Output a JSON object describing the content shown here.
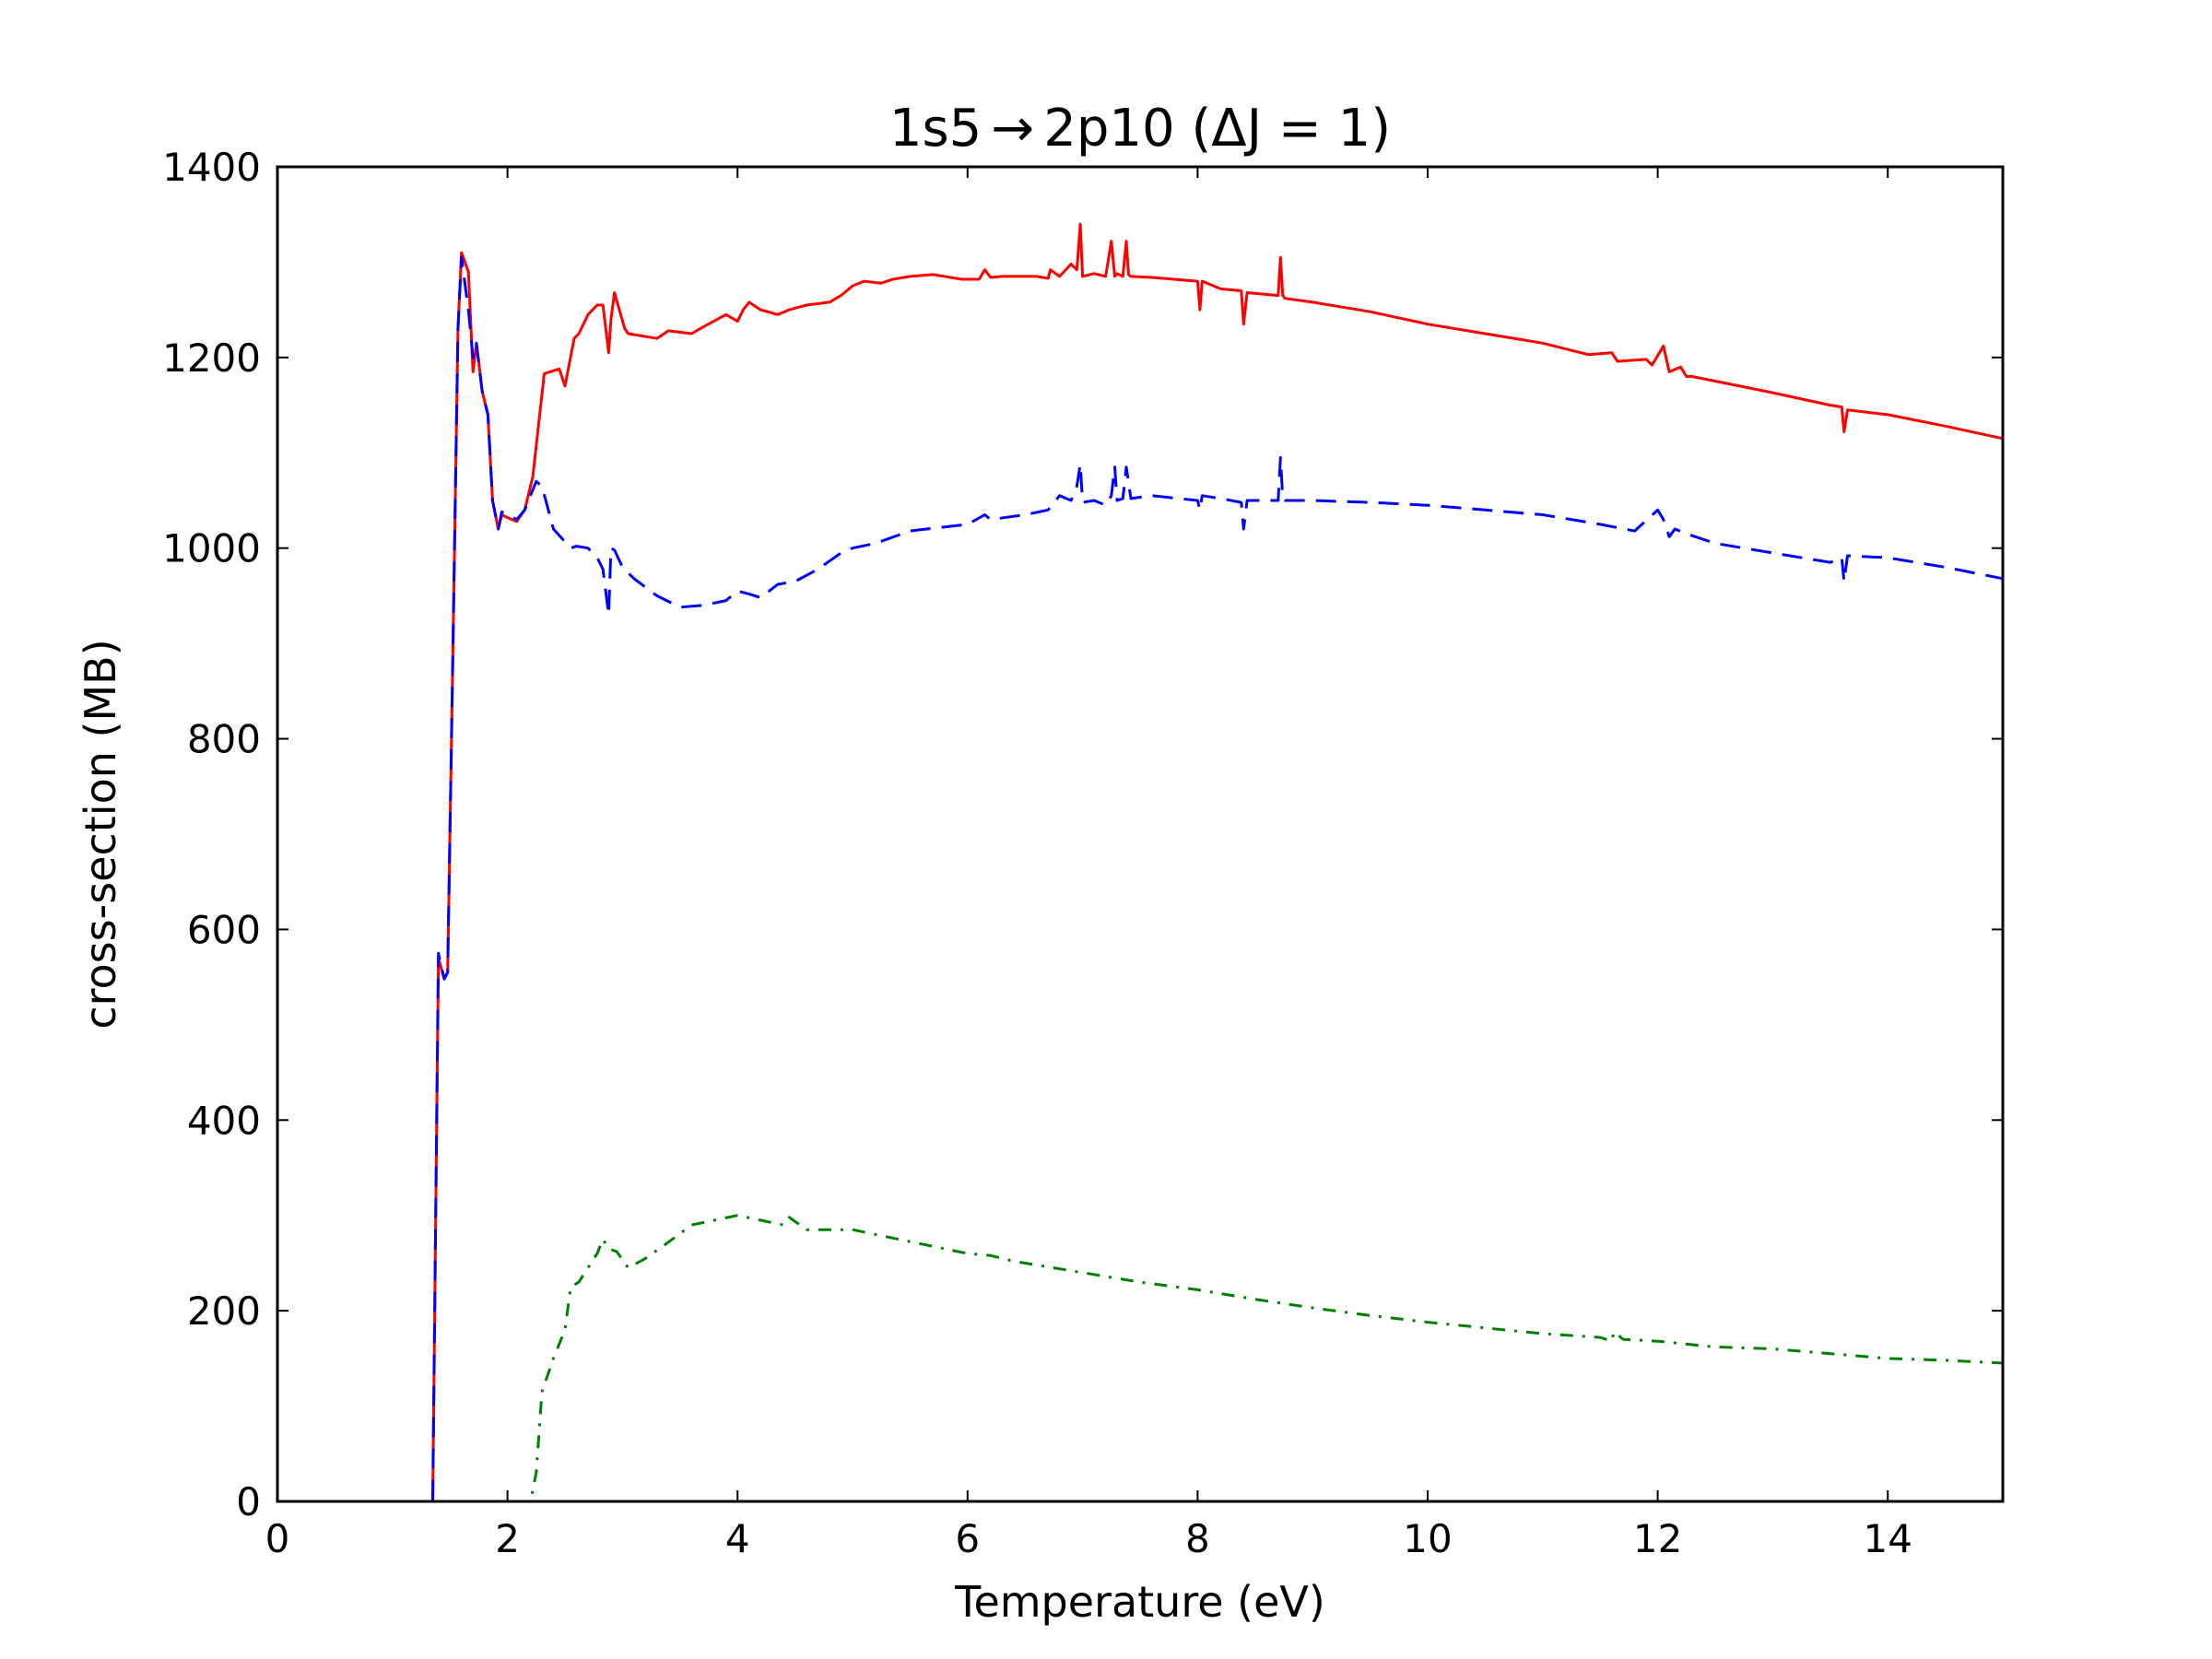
{
  "chart_data": {
    "type": "line",
    "title": "1s5 2p10  (ΔJ = 1)",
    "title_parts": {
      "left": "1s5",
      "arrow": "→",
      "right": "2p10  (ΔJ = 1)"
    },
    "xlabel": "Temperature (eV)",
    "ylabel": "cross-section (MB)",
    "xlim": [
      0,
      15
    ],
    "ylim": [
      0,
      1400
    ],
    "xticks": [
      0,
      2,
      4,
      6,
      8,
      10,
      12,
      14
    ],
    "yticks": [
      0,
      200,
      400,
      600,
      800,
      1000,
      1200,
      1400
    ],
    "grid": false,
    "legend": "none",
    "series": [
      {
        "color": "#ff0000",
        "dash": "solid",
        "x": [
          0,
          1.35,
          1.35,
          1.4,
          1.45,
          1.48,
          1.52,
          1.57,
          1.6,
          1.66,
          1.7,
          1.73,
          1.78,
          1.83,
          1.87,
          1.92,
          1.95,
          2.0,
          2.08,
          2.15,
          2.22,
          2.32,
          2.45,
          2.5,
          2.58,
          2.62,
          2.7,
          2.78,
          2.83,
          2.88,
          2.9,
          2.93,
          3.02,
          3.05,
          3.3,
          3.4,
          3.6,
          3.7,
          3.9,
          4.0,
          4.05,
          4.1,
          4.2,
          4.35,
          4.45,
          4.6,
          4.8,
          4.9,
          5.0,
          5.1,
          5.25,
          5.35,
          5.5,
          5.7,
          5.95,
          6.1,
          6.15,
          6.2,
          6.3,
          6.6,
          6.7,
          6.72,
          6.8,
          6.9,
          6.95,
          6.98,
          7.0,
          7.1,
          7.2,
          7.25,
          7.28,
          7.3,
          7.35,
          7.38,
          7.4,
          7.42,
          7.6,
          8.0,
          8.02,
          8.04,
          8.2,
          8.38,
          8.4,
          8.43,
          8.7,
          8.72,
          8.74,
          8.76,
          9.0,
          9.5,
          10.0,
          10.5,
          11.0,
          11.4,
          11.6,
          11.65,
          11.9,
          11.95,
          12.0,
          12.05,
          12.1,
          12.2,
          12.25,
          12.3,
          12.8,
          13.0,
          13.5,
          13.6,
          13.62,
          13.65,
          14.0,
          14.5,
          15.0
        ],
        "y": [
          0,
          0,
          0,
          570,
          548,
          555,
          850,
          1230,
          1310,
          1290,
          1185,
          1215,
          1165,
          1140,
          1050,
          1020,
          1035,
          1032,
          1028,
          1040,
          1075,
          1183,
          1188,
          1170,
          1220,
          1225,
          1245,
          1255,
          1255,
          1205,
          1240,
          1268,
          1230,
          1225,
          1220,
          1228,
          1225,
          1232,
          1245,
          1238,
          1250,
          1258,
          1250,
          1245,
          1250,
          1255,
          1258,
          1265,
          1275,
          1280,
          1278,
          1282,
          1285,
          1287,
          1282,
          1282,
          1292,
          1284,
          1285,
          1285,
          1283,
          1292,
          1285,
          1298,
          1292,
          1340,
          1285,
          1288,
          1285,
          1322,
          1285,
          1288,
          1285,
          1322,
          1287,
          1285,
          1284,
          1280,
          1250,
          1280,
          1272,
          1270,
          1235,
          1268,
          1265,
          1305,
          1265,
          1262,
          1258,
          1248,
          1235,
          1225,
          1215,
          1203,
          1205,
          1196,
          1198,
          1192,
          1202,
          1212,
          1185,
          1190,
          1180,
          1180,
          1168,
          1163,
          1150,
          1148,
          1122,
          1145,
          1140,
          1128,
          1115
        ]
      },
      {
        "color": "#0000ff",
        "dash": "dashed",
        "x": [
          0,
          1.35,
          1.35,
          1.4,
          1.45,
          1.48,
          1.52,
          1.57,
          1.6,
          1.66,
          1.7,
          1.73,
          1.78,
          1.83,
          1.87,
          1.92,
          1.95,
          2.0,
          2.08,
          2.15,
          2.25,
          2.3,
          2.4,
          2.55,
          2.6,
          2.7,
          2.78,
          2.83,
          2.88,
          2.9,
          2.93,
          3.0,
          3.1,
          3.3,
          3.5,
          3.7,
          3.9,
          4.0,
          4.1,
          4.2,
          4.35,
          4.5,
          4.7,
          4.9,
          5.0,
          5.2,
          5.5,
          6.0,
          6.15,
          6.2,
          6.5,
          6.7,
          6.8,
          6.9,
          6.95,
          6.98,
          7.0,
          7.1,
          7.2,
          7.25,
          7.28,
          7.3,
          7.35,
          7.38,
          7.42,
          7.6,
          8.0,
          8.02,
          8.04,
          8.2,
          8.38,
          8.4,
          8.43,
          8.7,
          8.72,
          8.74,
          8.76,
          9.0,
          9.5,
          10.0,
          10.5,
          11.0,
          11.5,
          11.8,
          12.0,
          12.05,
          12.1,
          12.15,
          12.25,
          12.5,
          13.0,
          13.5,
          13.6,
          13.62,
          13.65,
          14.0,
          14.5,
          15.0
        ],
        "y": [
          0,
          0,
          0,
          575,
          548,
          555,
          850,
          1230,
          1305,
          1250,
          1200,
          1215,
          1165,
          1140,
          1050,
          1020,
          1038,
          1035,
          1030,
          1040,
          1070,
          1065,
          1020,
          1000,
          1002,
          1000,
          990,
          978,
          930,
          1000,
          998,
          980,
          968,
          950,
          938,
          940,
          945,
          955,
          952,
          948,
          962,
          965,
          978,
          995,
          1000,
          1005,
          1018,
          1025,
          1035,
          1030,
          1035,
          1040,
          1055,
          1050,
          1065,
          1088,
          1048,
          1050,
          1045,
          1055,
          1085,
          1050,
          1052,
          1085,
          1052,
          1055,
          1050,
          1040,
          1055,
          1052,
          1048,
          1020,
          1050,
          1050,
          1095,
          1052,
          1050,
          1050,
          1048,
          1045,
          1040,
          1035,
          1025,
          1018,
          1040,
          1030,
          1012,
          1020,
          1015,
          1005,
          995,
          985,
          990,
          965,
          992,
          990,
          980,
          968
        ]
      },
      {
        "color": "#008000",
        "dash": "dashdot",
        "x": [
          0,
          2.2,
          2.25,
          2.3,
          2.4,
          2.5,
          2.55,
          2.62,
          2.7,
          2.78,
          2.83,
          2.88,
          2.95,
          3.05,
          3.2,
          3.4,
          3.6,
          3.8,
          4.0,
          4.2,
          4.4,
          4.45,
          4.6,
          4.8,
          5.0,
          5.4,
          5.8,
          6.0,
          6.2,
          6.4,
          6.6,
          7.0,
          7.5,
          8.0,
          8.5,
          9.0,
          9.5,
          10.0,
          10.5,
          11.0,
          11.5,
          11.6,
          11.62,
          11.7,
          12.0,
          12.5,
          13.0,
          13.5,
          14.0,
          14.5,
          15.0
        ],
        "y": [
          0,
          0,
          30,
          115,
          150,
          180,
          225,
          230,
          245,
          260,
          275,
          265,
          262,
          245,
          255,
          272,
          290,
          295,
          300,
          295,
          290,
          298,
          285,
          285,
          285,
          275,
          265,
          260,
          258,
          252,
          248,
          240,
          230,
          222,
          212,
          203,
          195,
          188,
          182,
          176,
          172,
          168,
          178,
          170,
          168,
          162,
          160,
          155,
          150,
          148,
          145
        ]
      }
    ]
  }
}
